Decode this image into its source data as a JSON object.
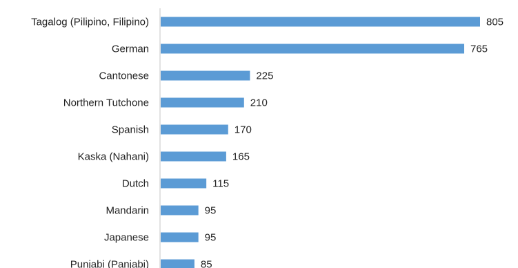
{
  "chart_data": {
    "type": "bar",
    "orientation": "horizontal",
    "categories": [
      "Tagalog (Pilipino, Filipino)",
      "German",
      "Cantonese",
      "Northern Tutchone",
      "Spanish",
      "Kaska (Nahani)",
      "Dutch",
      "Mandarin",
      "Japanese",
      "Punjabi (Panjabi)"
    ],
    "values": [
      805,
      765,
      225,
      210,
      170,
      165,
      115,
      95,
      95,
      85
    ],
    "value_labels": [
      "805",
      "765",
      "225",
      "210",
      "170",
      "165",
      "115",
      "95",
      "95",
      "85"
    ],
    "xlim": [
      0,
      840
    ],
    "grid": false,
    "legend": "none",
    "bar_color": "#5b9bd5",
    "axis_color": "#d9d9d9"
  }
}
